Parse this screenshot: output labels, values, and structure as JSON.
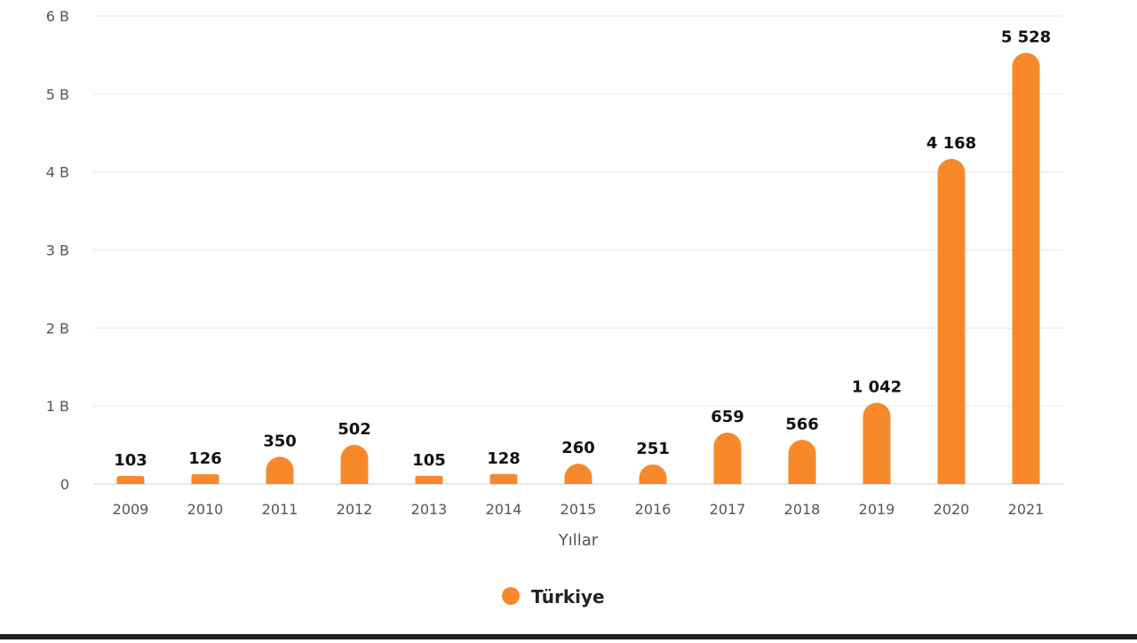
{
  "chart_data": {
    "type": "bar",
    "categories": [
      "2009",
      "2010",
      "2011",
      "2012",
      "2013",
      "2014",
      "2015",
      "2016",
      "2017",
      "2018",
      "2019",
      "2020",
      "2021"
    ],
    "series": [
      {
        "name": "Türkiye",
        "values": [
          103,
          126,
          350,
          502,
          105,
          128,
          260,
          251,
          659,
          566,
          1042,
          4168,
          5528
        ],
        "labels": [
          "103",
          "126",
          "350",
          "502",
          "105",
          "128",
          "260",
          "251",
          "659",
          "566",
          "1 042",
          "4 168",
          "5 528"
        ],
        "color": "#F7892B"
      }
    ],
    "xlabel": "Yıllar",
    "ylabel": "",
    "ylim": [
      0,
      6000
    ],
    "yticks": [
      {
        "value": 0,
        "label": "0"
      },
      {
        "value": 1000,
        "label": "1 B"
      },
      {
        "value": 2000,
        "label": "2 B"
      },
      {
        "value": 3000,
        "label": "3 B"
      },
      {
        "value": 4000,
        "label": "4 B"
      },
      {
        "value": 5000,
        "label": "5 B"
      },
      {
        "value": 6000,
        "label": "6 B"
      }
    ],
    "grid": true,
    "legend_position": "bottom-center"
  }
}
